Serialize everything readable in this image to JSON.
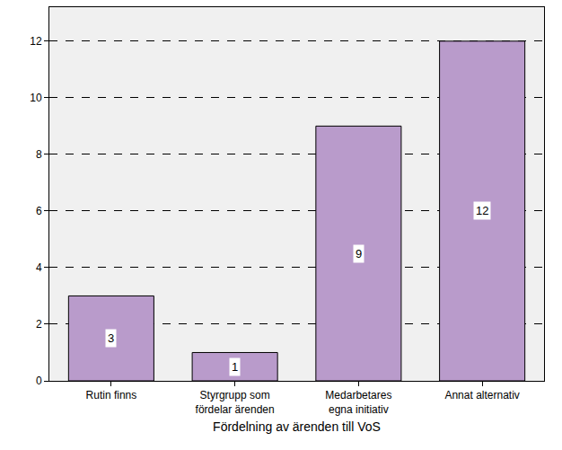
{
  "chart_data": {
    "type": "bar",
    "x_label": "Fördelning av ärenden till VoS",
    "categories": [
      "Rutin finns",
      "Styrgrupp som fördelar ärenden",
      "Medarbetares egna initiativ",
      "Annat alternativ"
    ],
    "values": [
      3,
      1,
      9,
      12
    ],
    "color": "#b99bcb",
    "ylim": [
      0,
      13.2
    ],
    "yticks": [
      0,
      2,
      4,
      6,
      8,
      10,
      12
    ],
    "grid": true,
    "data_labels": true
  }
}
